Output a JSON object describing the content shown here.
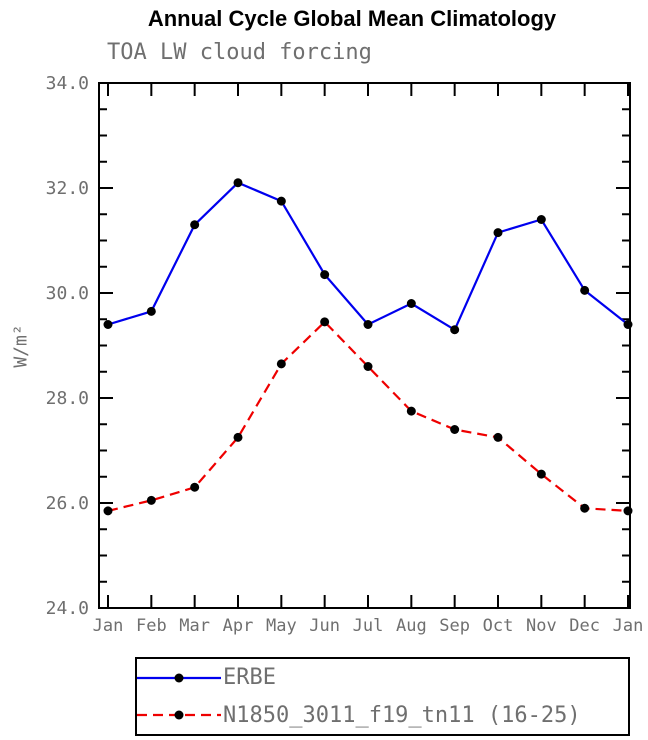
{
  "title": "Annual Cycle Global Mean Climatology",
  "subtitle": "TOA LW cloud forcing",
  "ylabel": "W/m²",
  "chart_data": {
    "type": "line",
    "categories": [
      "Jan",
      "Feb",
      "Mar",
      "Apr",
      "May",
      "Jun",
      "Jul",
      "Aug",
      "Sep",
      "Oct",
      "Nov",
      "Dec",
      "Jan"
    ],
    "series": [
      {
        "name": "ERBE",
        "color": "#0000ee",
        "line_style": "solid",
        "values": [
          29.4,
          29.65,
          31.3,
          32.1,
          31.75,
          30.35,
          29.4,
          29.8,
          29.3,
          31.15,
          31.4,
          30.05,
          29.4
        ]
      },
      {
        "name": "N1850_3011_f19_tn11 (16-25)",
        "color": "#ee0000",
        "line_style": "dashed",
        "values": [
          25.85,
          26.05,
          26.3,
          27.25,
          28.65,
          29.45,
          28.6,
          27.75,
          27.4,
          27.25,
          26.55,
          25.9,
          25.85
        ]
      }
    ],
    "ylim": [
      24.0,
      34.0
    ],
    "ytick_step": 2.0,
    "ytick_minor_step": 0.5,
    "ytick_labels": [
      "24.0",
      "26.0",
      "28.0",
      "30.0",
      "32.0",
      "34.0"
    ],
    "marker": {
      "shape": "circle",
      "color": "#000000"
    },
    "grid": "off",
    "legend_position": "bottom"
  },
  "colors": {
    "axis": "#000000",
    "tick_text": "#6f6f6f",
    "background": "#ffffff"
  }
}
